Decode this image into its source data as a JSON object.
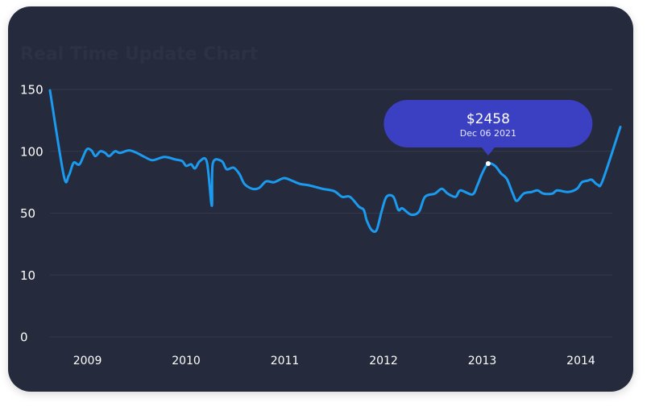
{
  "chart_data": {
    "type": "line",
    "title": "Real Time Update Chart",
    "x": [
      2008.62,
      2008.76,
      2008.81,
      2008.86,
      2008.92,
      2008.99,
      2009.04,
      2009.08,
      2009.13,
      2009.18,
      2009.22,
      2009.28,
      2009.33,
      2009.42,
      2009.5,
      2009.58,
      2009.66,
      2009.78,
      2009.89,
      2009.96,
      2010.0,
      2010.05,
      2010.09,
      2010.14,
      2010.21,
      2010.26,
      2010.27,
      2010.36,
      2010.41,
      2010.48,
      2010.54,
      2010.59,
      2010.67,
      2010.74,
      2010.81,
      2010.89,
      2010.99,
      2011.07,
      2011.15,
      2011.25,
      2011.38,
      2011.5,
      2011.58,
      2011.66,
      2011.75,
      2011.8,
      2011.83,
      2011.88,
      2011.93,
      2011.98,
      2012.03,
      2012.1,
      2012.15,
      2012.19,
      2012.28,
      2012.36,
      2012.42,
      2012.52,
      2012.59,
      2012.65,
      2012.73,
      2012.78,
      2012.9,
      2012.95,
      2013.0,
      2013.06,
      2013.13,
      2013.19,
      2013.25,
      2013.31,
      2013.35,
      2013.42,
      2013.5,
      2013.56,
      2013.62,
      2013.71,
      2013.76,
      2013.87,
      2013.96,
      2014.01,
      2014.07,
      2014.11,
      2014.17,
      2014.22,
      2014.4
    ],
    "series": [
      {
        "color": "#1a9bf0",
        "values": [
          149.3,
          80.3,
          80.3,
          90.8,
          89.5,
          101.3,
          100.7,
          96.1,
          100,
          98.7,
          96.1,
          100,
          98.7,
          100.7,
          98.7,
          95.4,
          92.8,
          95.4,
          93.4,
          92.1,
          88.2,
          89.5,
          86.2,
          92.1,
          91.4,
          55.9,
          90.1,
          92.1,
          85.5,
          86.8,
          81.6,
          73.7,
          69.7,
          70.4,
          75.7,
          75,
          78.3,
          76.3,
          73.7,
          72.4,
          69.7,
          67.8,
          63.2,
          63.2,
          55.3,
          52.6,
          45.3,
          39.1,
          39.1,
          51.3,
          63.2,
          63.2,
          52.6,
          53.9,
          49,
          51.3,
          63.2,
          65.8,
          69.7,
          65.8,
          63.2,
          68.4,
          65.1,
          72.4,
          82.2,
          90.1,
          88.2,
          82.2,
          77.6,
          65.8,
          59.9,
          65.8,
          67.1,
          68.4,
          65.8,
          65.8,
          68.4,
          67.1,
          69.7,
          75,
          76.3,
          77,
          73,
          76.3,
          119.7
        ]
      }
    ],
    "xlim": [
      2008.62,
      2014.4
    ],
    "xticks": [
      2009,
      2010,
      2011,
      2012,
      2013,
      2014
    ],
    "ylim": [
      0,
      150
    ],
    "yticks": [
      0,
      10,
      50,
      100,
      150
    ],
    "grid": true,
    "annotation": {
      "title": "$2458",
      "subtitle": "Dec 06 2021",
      "x": 2013.06,
      "y": 90.1
    }
  }
}
